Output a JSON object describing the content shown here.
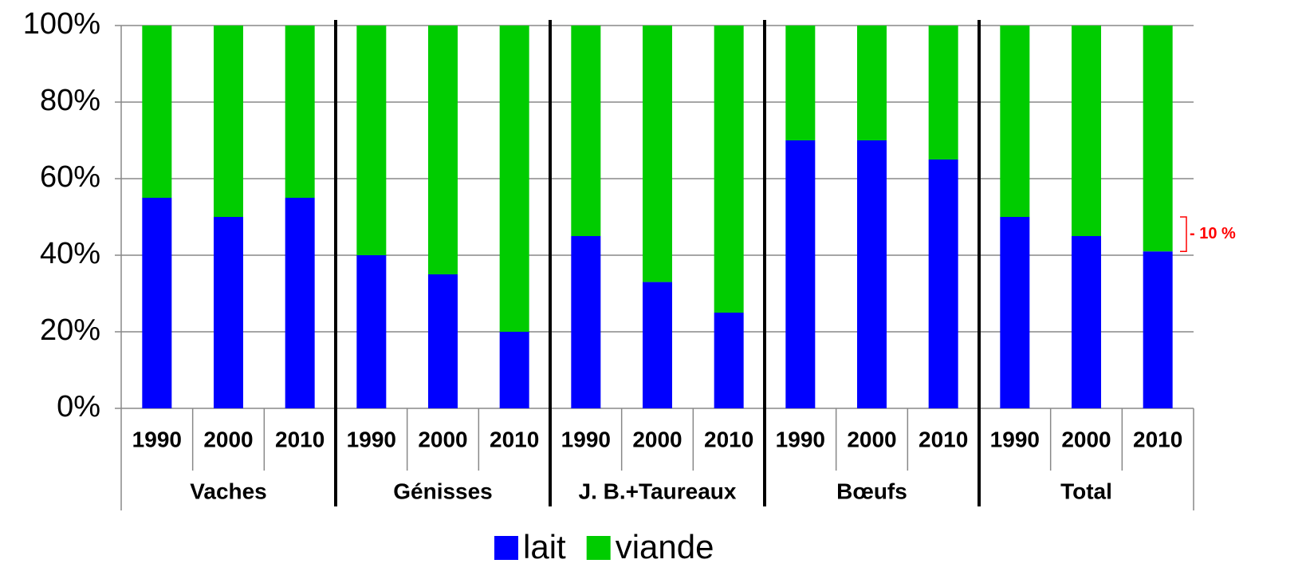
{
  "chart_data": {
    "type": "bar",
    "stacked": true,
    "groups": [
      {
        "name": "Vaches",
        "categories": [
          "1990",
          "2000",
          "2010"
        ]
      },
      {
        "name": "Génisses",
        "categories": [
          "1990",
          "2000",
          "2010"
        ]
      },
      {
        "name": "J. B.+Taureaux",
        "categories": [
          "1990",
          "2000",
          "2010"
        ]
      },
      {
        "name": "Bœufs",
        "categories": [
          "1990",
          "2000",
          "2010"
        ]
      },
      {
        "name": "Total",
        "categories": [
          "1990",
          "2000",
          "2010"
        ]
      }
    ],
    "series": [
      {
        "name": "lait",
        "color": "#0000ff",
        "values": [
          55,
          50,
          55,
          40,
          35,
          20,
          45,
          33,
          25,
          70,
          70,
          65,
          50,
          45,
          41
        ]
      },
      {
        "name": "viande",
        "color": "#00cc00",
        "values": [
          45,
          50,
          45,
          60,
          65,
          80,
          55,
          67,
          75,
          30,
          30,
          35,
          50,
          55,
          59
        ]
      }
    ],
    "ylim": [
      0,
      100
    ],
    "yticks": [
      {
        "value": 0,
        "label": "0%"
      },
      {
        "value": 20,
        "label": "20%"
      },
      {
        "value": 40,
        "label": "40%"
      },
      {
        "value": 60,
        "label": "60%"
      },
      {
        "value": 80,
        "label": "80%"
      },
      {
        "value": 100,
        "label": "100%"
      }
    ],
    "grid": true,
    "legend": "bottom",
    "annotations": [
      {
        "text": "- 10 %",
        "color": "#ff0000"
      }
    ]
  }
}
